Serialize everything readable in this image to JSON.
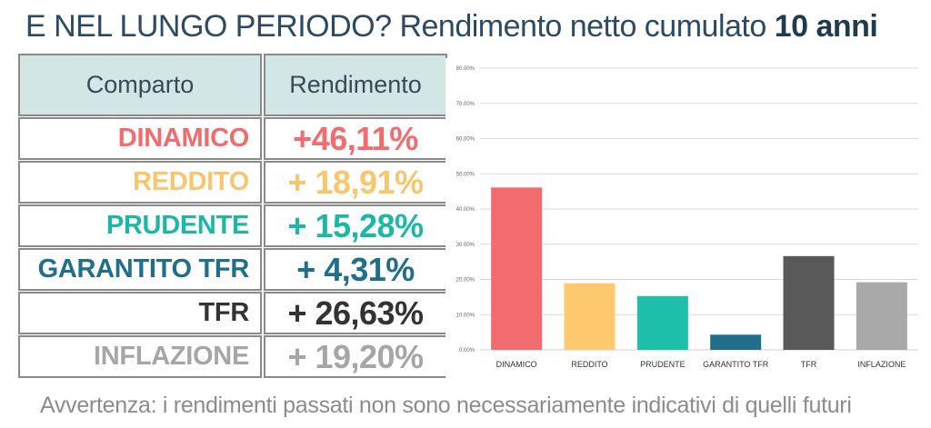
{
  "title": {
    "main": "E NEL LUNGO PERIODO? Rendimento netto cumulato ",
    "bold": "10 anni"
  },
  "table": {
    "headers": [
      "Comparto",
      "Rendimento"
    ],
    "rows": [
      {
        "name": "DINAMICO",
        "value": "+46,11%",
        "color": "#f26b6f"
      },
      {
        "name": "REDDITO",
        "value": "+ 18,91%",
        "color": "#f9c66e"
      },
      {
        "name": "PRUDENTE",
        "value": "+ 15,28%",
        "color": "#1cb8a6"
      },
      {
        "name": "GARANTITO TFR",
        "value": "+ 4,31%",
        "color": "#1f6f8b"
      },
      {
        "name": "TFR",
        "value": "+ 26,63%",
        "color": "#333333"
      },
      {
        "name": "INFLAZIONE",
        "value": "+ 19,20%",
        "color": "#a6a6a6"
      }
    ]
  },
  "chart_data": {
    "type": "bar",
    "categories": [
      "DINAMICO",
      "REDDITO",
      "PRUDENTE",
      "GARANTITO TFR",
      "TFR",
      "INFLAZIONE"
    ],
    "values": [
      46.11,
      18.91,
      15.28,
      4.31,
      26.63,
      19.2
    ],
    "colors": [
      "#f26b6f",
      "#fec96f",
      "#1ebfab",
      "#1f6f8b",
      "#595959",
      "#a9a9a9"
    ],
    "yticks": [
      "0.00%",
      "10.00%",
      "20.00%",
      "30.00%",
      "40.00%",
      "50.00%",
      "60.00%",
      "70.00%",
      "80.00%"
    ],
    "ylim": [
      0,
      80
    ],
    "grid": true,
    "title": "",
    "xlabel": "",
    "ylabel": ""
  },
  "note": "Avvertenza: i rendimenti passati non sono necessariamente indicativi di quelli futuri"
}
